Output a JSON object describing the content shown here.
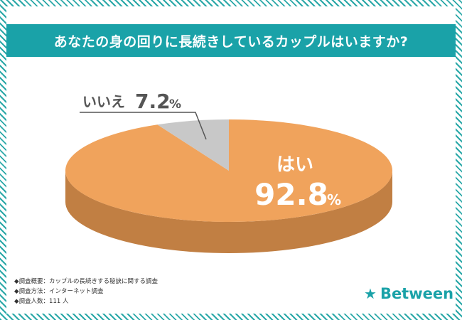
{
  "title": "あなたの身の回りに長続きしているカップルはいますか?",
  "chart_data": {
    "type": "pie",
    "style": "3d",
    "slices": [
      {
        "label": "はい",
        "value": 92.8,
        "color": "#f0a35c",
        "side_color": "#c17f43"
      },
      {
        "label": "いいえ",
        "value": 7.2,
        "color": "#c8c8c8",
        "side_color": "#a7a7a7"
      }
    ],
    "unit": "%"
  },
  "footnotes": [
    "◆調査概要：カップルの長続きする秘訣に関する調査",
    "◆調査方法：インターネット調査",
    "◆調査人数：111 人"
  ],
  "logo": {
    "text": "Between",
    "icon": "star-icon",
    "color": "#1aa2a8"
  }
}
